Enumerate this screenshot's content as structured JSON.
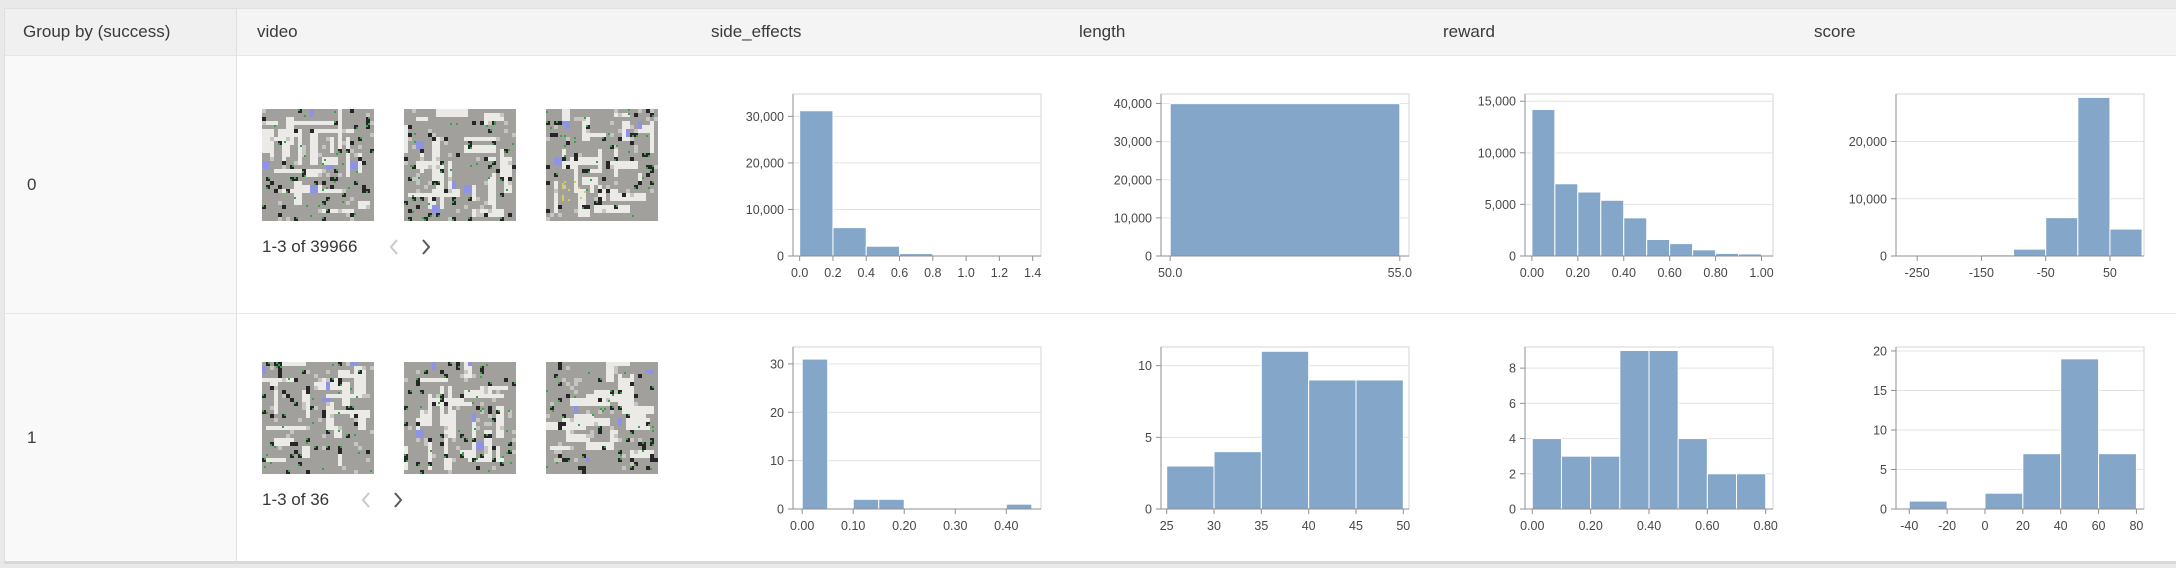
{
  "header": {
    "columns": [
      {
        "label": "Group by (success)"
      },
      {
        "label": "video"
      },
      {
        "label": "side_effects"
      },
      {
        "label": "length"
      },
      {
        "label": "reward"
      },
      {
        "label": "score"
      }
    ]
  },
  "rows": [
    {
      "group_value": "0",
      "video": {
        "pagination_label": "1-3 of 39966",
        "thumbnail_count": 3
      }
    },
    {
      "group_value": "1",
      "video": {
        "pagination_label": "1-3 of 36",
        "thumbnail_count": 3
      }
    }
  ],
  "chart_data": [
    {
      "type": "bar",
      "row_group": "0",
      "column": "side_effects",
      "bin_start": 0.0,
      "bin_width": 0.2,
      "values": [
        31200,
        6100,
        2100,
        520,
        140,
        60,
        40
      ],
      "xlim": [
        -0.04,
        1.45
      ],
      "ylim": [
        0,
        34800
      ],
      "x_ticks": [
        0.0,
        0.2,
        0.4,
        0.6,
        0.8,
        1.0,
        1.2,
        1.4
      ],
      "x_tick_labels": [
        "0.0",
        "0.2",
        "0.4",
        "0.6",
        "0.8",
        "1.0",
        "1.2",
        "1.4"
      ],
      "y_ticks": [
        0,
        10000,
        20000,
        30000
      ],
      "y_tick_labels": [
        "0",
        "10,000",
        "20,000",
        "30,000"
      ],
      "grid": true,
      "legend": false
    },
    {
      "type": "bar",
      "row_group": "0",
      "column": "length",
      "bin_start": 50.0,
      "bin_width": 5.0,
      "values": [
        39966
      ],
      "xlim": [
        49.8,
        55.2
      ],
      "ylim": [
        0,
        42500
      ],
      "x_ticks": [
        50.0,
        55.0
      ],
      "x_tick_labels": [
        "50.0",
        "55.0"
      ],
      "y_ticks": [
        0,
        10000,
        20000,
        30000,
        40000
      ],
      "y_tick_labels": [
        "0",
        "10,000",
        "20,000",
        "30,000",
        "40,000"
      ],
      "grid": true,
      "legend": false
    },
    {
      "type": "bar",
      "row_group": "0",
      "column": "reward",
      "bin_start": 0.0,
      "bin_width": 0.1,
      "values": [
        14200,
        7000,
        6200,
        5400,
        3700,
        1600,
        1200,
        600,
        250,
        200
      ],
      "xlim": [
        -0.03,
        1.05
      ],
      "ylim": [
        0,
        15700
      ],
      "x_ticks": [
        0.0,
        0.2,
        0.4,
        0.6,
        0.8,
        1.0
      ],
      "x_tick_labels": [
        "0.00",
        "0.20",
        "0.40",
        "0.60",
        "0.80",
        "1.00"
      ],
      "y_ticks": [
        0,
        5000,
        10000,
        15000
      ],
      "y_tick_labels": [
        "0",
        "5,000",
        "10,000",
        "15,000"
      ],
      "grid": true,
      "legend": false
    },
    {
      "type": "bar",
      "row_group": "0",
      "column": "score",
      "bin_start": -250,
      "bin_width": 50,
      "values": [
        100,
        150,
        200,
        1200,
        6700,
        27700,
        4700
      ],
      "xlim": [
        -283,
        103
      ],
      "ylim": [
        0,
        28300
      ],
      "x_ticks": [
        -250,
        -150,
        -50,
        50
      ],
      "x_tick_labels": [
        "-250",
        "-150",
        "-50",
        "50"
      ],
      "y_ticks": [
        0,
        10000,
        20000
      ],
      "y_tick_labels": [
        "0",
        "10,000",
        "20,000"
      ],
      "grid": true,
      "legend": false
    },
    {
      "type": "bar",
      "row_group": "1",
      "column": "side_effects",
      "bin_start": 0.0,
      "bin_width": 0.05,
      "values": [
        31,
        0,
        2,
        2,
        0,
        0,
        0,
        0,
        1
      ],
      "xlim": [
        -0.018,
        0.468
      ],
      "ylim": [
        0,
        33.5
      ],
      "x_ticks": [
        0.0,
        0.1,
        0.2,
        0.3,
        0.4
      ],
      "x_tick_labels": [
        "0.00",
        "0.10",
        "0.20",
        "0.30",
        "0.40"
      ],
      "y_ticks": [
        0,
        10,
        20,
        30
      ],
      "y_tick_labels": [
        "0",
        "10",
        "20",
        "30"
      ],
      "grid": true,
      "legend": false
    },
    {
      "type": "bar",
      "row_group": "1",
      "column": "length",
      "bin_start": 25,
      "bin_width": 5,
      "values": [
        3,
        4,
        11,
        9,
        9
      ],
      "xlim": [
        24.4,
        50.6
      ],
      "ylim": [
        0,
        11.3
      ],
      "x_ticks": [
        25,
        30,
        35,
        40,
        45,
        50
      ],
      "x_tick_labels": [
        "25",
        "30",
        "35",
        "40",
        "45",
        "50"
      ],
      "y_ticks": [
        0,
        5,
        10
      ],
      "y_tick_labels": [
        "0",
        "5",
        "10"
      ],
      "grid": true,
      "legend": false
    },
    {
      "type": "bar",
      "row_group": "1",
      "column": "reward",
      "bin_start": 0.0,
      "bin_width": 0.1,
      "values": [
        4,
        3,
        3,
        9,
        9,
        4,
        2,
        2
      ],
      "xlim": [
        -0.025,
        0.825
      ],
      "ylim": [
        0,
        9.2
      ],
      "x_ticks": [
        0.0,
        0.2,
        0.4,
        0.6,
        0.8
      ],
      "x_tick_labels": [
        "0.00",
        "0.20",
        "0.40",
        "0.60",
        "0.80"
      ],
      "y_ticks": [
        0,
        2,
        4,
        6,
        8
      ],
      "y_tick_labels": [
        "0",
        "2",
        "4",
        "6",
        "8"
      ],
      "grid": true,
      "legend": false
    },
    {
      "type": "bar",
      "row_group": "1",
      "column": "score",
      "bin_start": -40,
      "bin_width": 20,
      "values": [
        1,
        0,
        2,
        7,
        19,
        7
      ],
      "xlim": [
        -47,
        84
      ],
      "ylim": [
        0,
        20.5
      ],
      "x_ticks": [
        -40,
        -20,
        0,
        20,
        40,
        60,
        80
      ],
      "x_tick_labels": [
        "-40",
        "-20",
        "0",
        "20",
        "40",
        "60",
        "80"
      ],
      "y_ticks": [
        0,
        5,
        10,
        15,
        20
      ],
      "y_tick_labels": [
        "0",
        "5",
        "10",
        "15",
        "20"
      ],
      "grid": true,
      "legend": false
    }
  ],
  "icons": {
    "prev": "chevron-left-icon",
    "next": "chevron-right-icon"
  },
  "colors": {
    "chart": {
      "bar": "#84a6c9",
      "grid": "#e3e3e3",
      "border": "#d6d6d6",
      "axis": "#8f8f8f",
      "tick_text": "#474747"
    },
    "thumbnail": {
      "light": "#ebeae7",
      "gray": "#a1a09d",
      "mid": "#c6c5c2",
      "black": "#262626",
      "green": "#3aa34a",
      "blue": "#8e93e4",
      "yellow": "#d5ce50"
    },
    "table": {
      "page_bg": "#e9e9e9",
      "header_bg": "#f4f4f4",
      "group_col_bg": "#f9f9f9",
      "divider": "#e7e7e7",
      "outer_border": "#e0e0e0",
      "bottom_border": "#d9d9d9",
      "text": "#3a3a3a",
      "pager_enabled": "#5a5a5a",
      "pager_disabled": "#c9c9c9"
    }
  }
}
